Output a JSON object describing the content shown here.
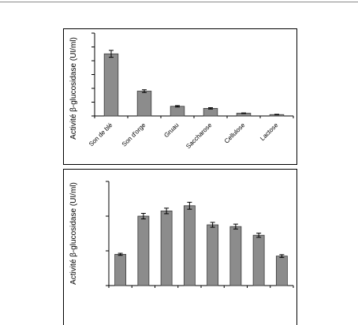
{
  "chart_data": [
    {
      "type": "bar",
      "ylabel": "Activité β-glucosidase  (UI/ml)",
      "title": "",
      "xlabel": "",
      "categories": [
        "Son de blé",
        "Son d'orge",
        "Gruau",
        "Saccharose",
        "Cellulose",
        "Lactose"
      ],
      "values": [
        4.5,
        1.8,
        0.7,
        0.55,
        0.2,
        0.1
      ],
      "errors": [
        0.25,
        0.1,
        0.05,
        0.05,
        0.02,
        0.02
      ],
      "ylim": [
        0,
        6
      ],
      "yticks": [
        0,
        1,
        2,
        3,
        4,
        5,
        6
      ],
      "tick_labels_visible": false,
      "grid": false,
      "legend": "none",
      "bar_color": "#8c8c8c"
    },
    {
      "type": "bar",
      "ylabel": "Activité β-glucosidase  (UI/ml)",
      "title": "",
      "xlabel": "",
      "categories": [
        "",
        "",
        "",
        "",
        "",
        "",
        "",
        ""
      ],
      "values": [
        0.9,
        2.0,
        2.15,
        2.3,
        1.75,
        1.7,
        1.45,
        0.85
      ],
      "errors": [
        0.03,
        0.08,
        0.08,
        0.1,
        0.07,
        0.07,
        0.06,
        0.04
      ],
      "ylim": [
        0,
        3
      ],
      "yticks": [
        0,
        1,
        2,
        3
      ],
      "tick_labels_visible": false,
      "grid": false,
      "legend": "none",
      "bar_color": "#8c8c8c"
    }
  ]
}
